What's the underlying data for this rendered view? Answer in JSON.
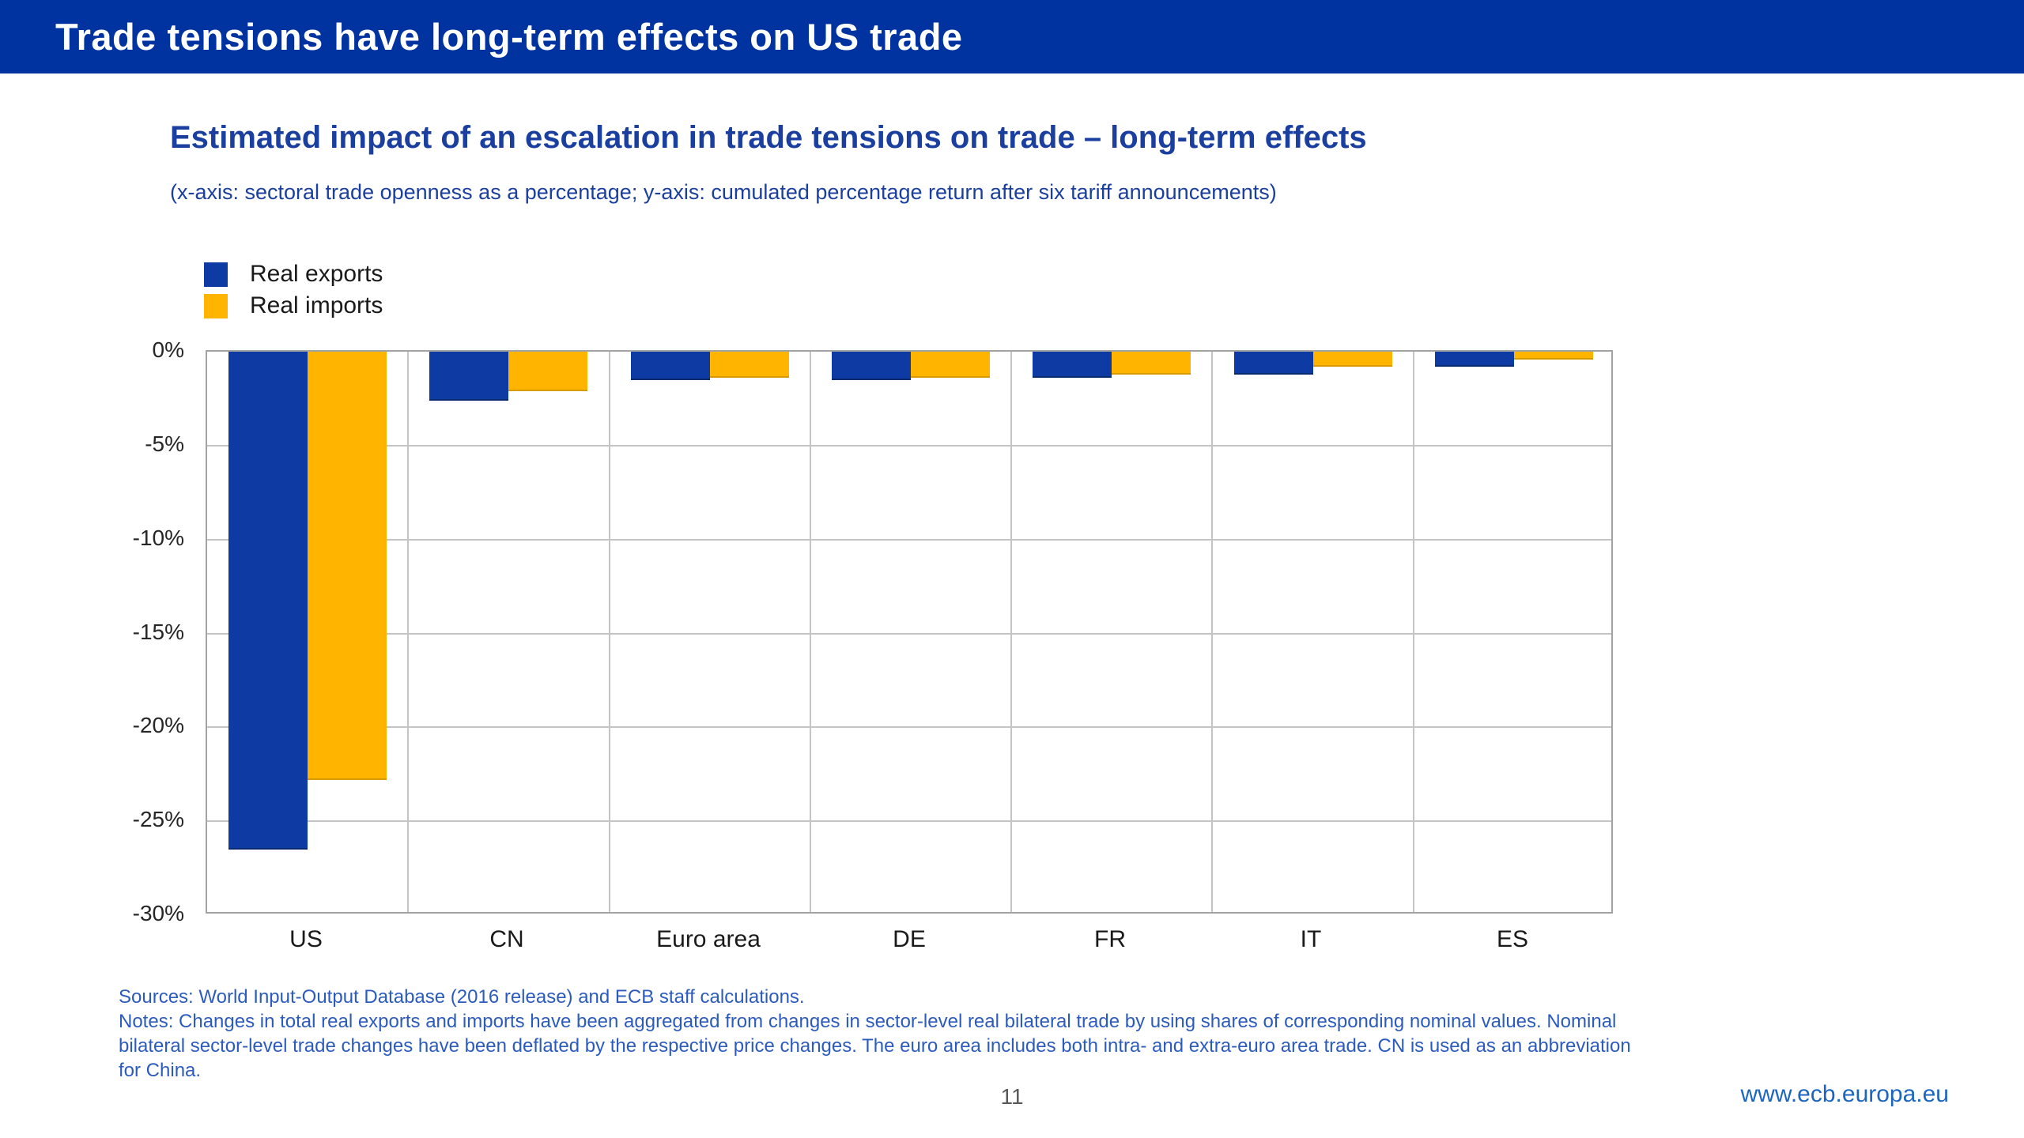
{
  "header": {
    "title": "Trade tensions have long-term effects on US trade"
  },
  "chart": {
    "title": "Estimated impact of an escalation in trade tensions on trade – long-term effects",
    "subtitle": "(x-axis: sectoral trade openness as a percentage; y-axis: cumulated percentage return after six tariff announcements)"
  },
  "chart_data": {
    "type": "bar",
    "categories": [
      "US",
      "CN",
      "Euro area",
      "DE",
      "FR",
      "IT",
      "ES"
    ],
    "series": [
      {
        "name": "Real exports",
        "color": "#0D3BA3",
        "edge_color": "#082B70",
        "values": [
          -26.5,
          -2.6,
          -1.5,
          -1.5,
          -1.4,
          -1.2,
          -0.8
        ]
      },
      {
        "name": "Real imports",
        "color": "#FFB400",
        "edge_color": "#D89A00",
        "values": [
          -22.8,
          -2.1,
          -1.4,
          -1.4,
          -1.2,
          -0.8,
          -0.4
        ]
      }
    ],
    "ylim": [
      -30,
      0
    ],
    "yticks": [
      "0%",
      "-5%",
      "-10%",
      "-15%",
      "-20%",
      "-25%",
      "-30%"
    ],
    "grid": true,
    "legend_position": "top-left"
  },
  "notes": {
    "lines": [
      "Sources: World Input-Output Database (2016 release) and ECB staff calculations.",
      "Notes: Changes in total real exports and imports have been aggregated from changes in sector-level real bilateral trade by using shares of corresponding nominal values. Nominal",
      "bilateral sector-level trade changes have been deflated by the respective price changes. The euro area includes both intra- and extra-euro area trade. CN is used as an abbreviation",
      "for China."
    ]
  },
  "footer": {
    "page_number": "11",
    "url": "www.ecb.europa.eu"
  },
  "colors": {
    "header_bg": "#0033A0",
    "title_blue": "#1B3F9E",
    "notes_blue": "#2C5BBE",
    "url_blue": "#1C66C0",
    "export_bar": "#0D3BA3",
    "import_bar": "#FFB400",
    "grid": "#C4C4C4",
    "plot_border": "#A3A3A3"
  }
}
